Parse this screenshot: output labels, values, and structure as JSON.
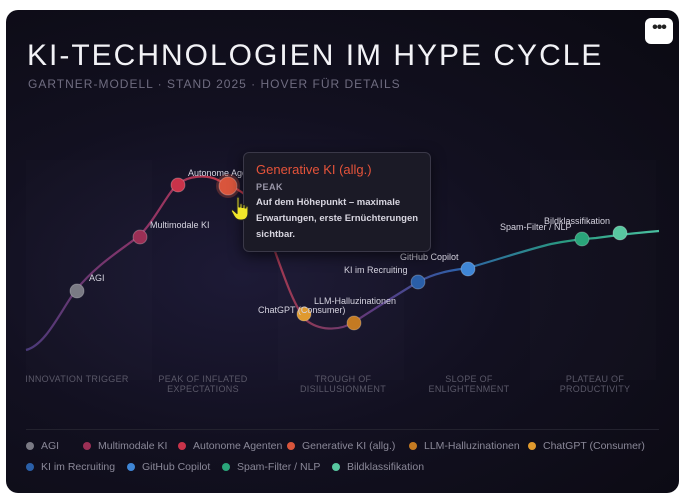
{
  "title": "KI-TECHNOLOGIEN IM HYPE CYCLE",
  "subtitle": "GARTNER-MODELL · STAND 2025 · HOVER FÜR DETAILS",
  "menu_icon": "more-horizontal-icon",
  "phases": [
    "INNOVATION TRIGGER",
    "PEAK OF INFLATED\nEXPECTATIONS",
    "TROUGH OF\nDISILLUSIONMENT",
    "SLOPE OF\nENLIGHTENMENT",
    "PLATEAU OF\nPRODUCTIVITY"
  ],
  "tooltip": {
    "title": "Generative KI (allg.)",
    "phase": "PEAK",
    "description": "Auf dem Höhepunkt – maximale Erwartungen, erste Ernüchterungen sichtbar."
  },
  "chart_data": {
    "type": "scatter",
    "title": "KI-TECHNOLOGIEN IM HYPE CYCLE",
    "x_axis_categories": [
      "INNOVATION TRIGGER",
      "PEAK OF INFLATED EXPECTATIONS",
      "TROUGH OF DISILLUSIONMENT",
      "SLOPE OF ENLIGHTENMENT",
      "PLATEAU OF PRODUCTIVITY"
    ],
    "points": [
      {
        "name": "AGI",
        "color": "#7a7a84",
        "label_visible": true
      },
      {
        "name": "Multimodale KI",
        "color": "#9b2f55",
        "label_visible": true
      },
      {
        "name": "Autonome Agenten",
        "color": "#c9334a",
        "label_visible": true
      },
      {
        "name": "Generative KI (allg.)",
        "color": "#d9553c",
        "label_visible": false,
        "hovered": true
      },
      {
        "name": "LLM-Halluzinationen",
        "color": "#c47a22",
        "label_visible": true
      },
      {
        "name": "ChatGPT (Consumer)",
        "color": "#e09a2e",
        "label_visible": true
      },
      {
        "name": "KI im Recruiting",
        "color": "#2a5fa8",
        "label_visible": true
      },
      {
        "name": "GitHub Copilot",
        "color": "#3f86d6",
        "label_visible": true
      },
      {
        "name": "Spam-Filter / NLP",
        "color": "#2aa57a",
        "label_visible": true
      },
      {
        "name": "Bildklassifikation",
        "color": "#58c7a0",
        "label_visible": true
      }
    ],
    "point_labels": {
      "AGI": "AGI",
      "Multimodale KI": "Multimodale KI",
      "Autonome Agenten": "Autonome Agen",
      "LLM-Halluzinationen": "LLM-Halluzinationen",
      "ChatGPT (Consumer)": "ChatGPT (Consumer)",
      "KI im Recruiting": "KI im Recruiting",
      "GitHub Copilot": "GitHub Copilot",
      "Spam-Filter / NLP": "Spam-Filter / NLP",
      "Bildklassifikation": "Bildklassifikation"
    },
    "legend": [
      "AGI",
      "Multimodale KI",
      "Autonome Agenten",
      "Generative KI (allg.)",
      "LLM-Halluzinationen",
      "ChatGPT (Consumer)",
      "KI im Recruiting",
      "GitHub Copilot",
      "Spam-Filter / NLP",
      "Bildklassifikation"
    ],
    "legend_position": "bottom",
    "grid": false
  }
}
